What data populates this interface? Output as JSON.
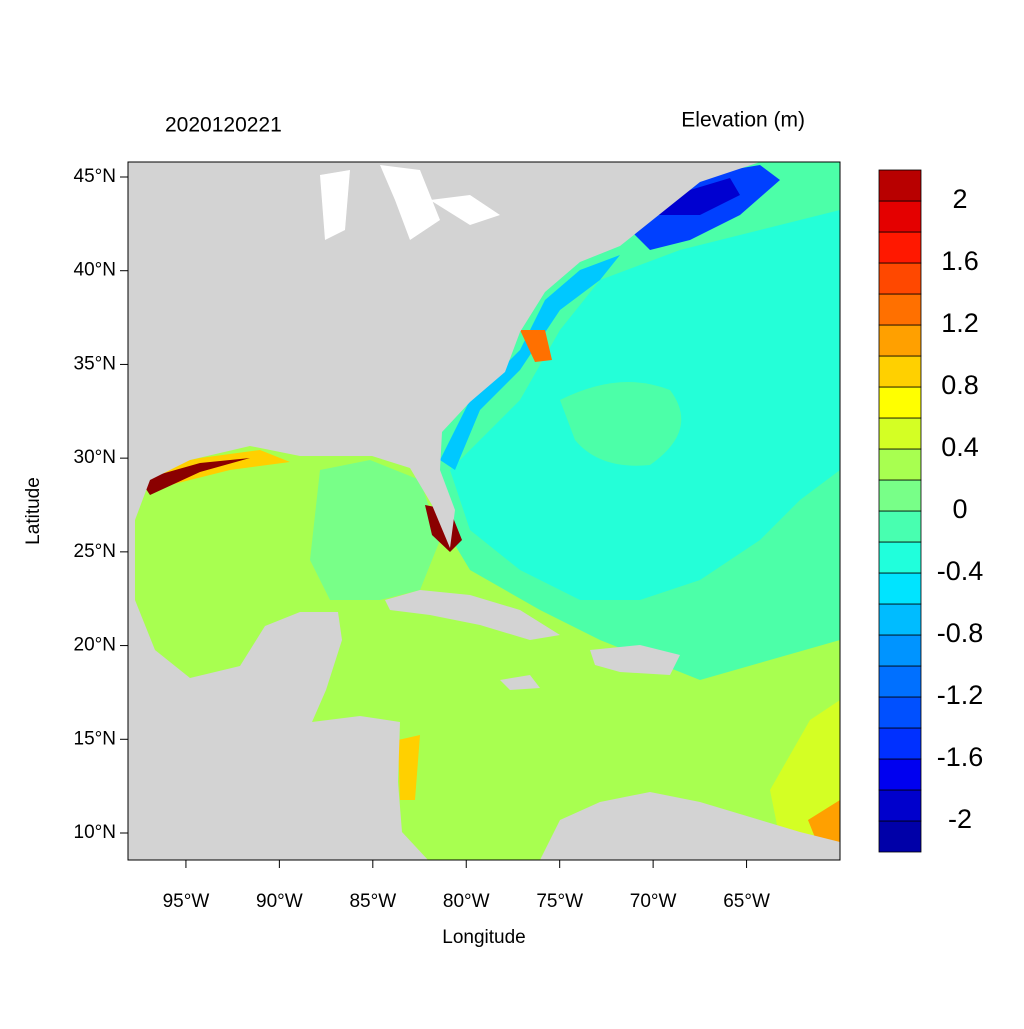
{
  "map": {
    "left_title": "2020120221",
    "right_title": "Elevation (m)",
    "x_label": "Longitude",
    "y_label": "Latitude",
    "xlim": [
      -98.1,
      -60
    ],
    "ylim": [
      8.56,
      45.8
    ],
    "xticks": [
      {
        "value": -95,
        "label": "95°W"
      },
      {
        "value": -90,
        "label": "90°W"
      },
      {
        "value": -85,
        "label": "85°W"
      },
      {
        "value": -80,
        "label": "80°W"
      },
      {
        "value": -75,
        "label": "75°W"
      },
      {
        "value": -70,
        "label": "70°W"
      },
      {
        "value": -65,
        "label": "65°W"
      }
    ],
    "yticks": [
      {
        "value": 10,
        "label": "10°N"
      },
      {
        "value": 15,
        "label": "15°N"
      },
      {
        "value": 20,
        "label": "20°N"
      },
      {
        "value": 25,
        "label": "25°N"
      },
      {
        "value": 30,
        "label": "30°N"
      },
      {
        "value": 35,
        "label": "35°N"
      },
      {
        "value": 40,
        "label": "40°N"
      },
      {
        "value": 45,
        "label": "45°N"
      }
    ],
    "colorbar": {
      "levels": [
        -2.2,
        -2,
        -1.8,
        -1.6,
        -1.4,
        -1.2,
        -1,
        -0.8,
        -0.6,
        -0.4,
        -0.2,
        0,
        0.2,
        0.4,
        0.6,
        0.8,
        1,
        1.2,
        1.4,
        1.6,
        1.8,
        2,
        2.2
      ],
      "colors": [
        "#0000a8",
        "#0000cc",
        "#0000f0",
        "#0030ff",
        "#0050ff",
        "#0070ff",
        "#0094ff",
        "#00bcff",
        "#00e4ff",
        "#20ffdc",
        "#48ffb0",
        "#78ff88",
        "#a8ff50",
        "#d4ff24",
        "#ffff00",
        "#ffd000",
        "#ffa000",
        "#ff7000",
        "#ff4800",
        "#ff1800",
        "#e40000",
        "#b80000",
        "#8a0000"
      ],
      "ticks": [
        -2,
        -1.6,
        -1.2,
        -0.8,
        -0.4,
        0,
        0.4,
        0.8,
        1.2,
        1.6,
        2
      ]
    }
  }
}
